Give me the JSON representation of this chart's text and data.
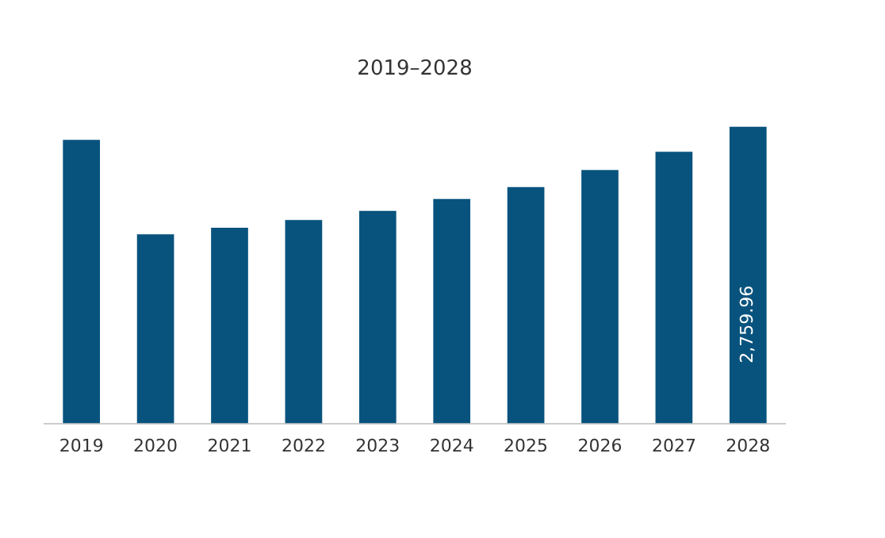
{
  "chart_data": {
    "type": "bar",
    "title": "2019–2028",
    "categories": [
      "2019",
      "2020",
      "2021",
      "2022",
      "2023",
      "2024",
      "2025",
      "2026",
      "2027",
      "2028"
    ],
    "values": [
      2638,
      1759,
      1820,
      1893,
      1978,
      2088,
      2198,
      2357,
      2528,
      2759.96
    ],
    "value_labels": [
      null,
      null,
      null,
      null,
      null,
      null,
      null,
      null,
      null,
      "2,759.96"
    ],
    "color": "#08537e",
    "grid": false,
    "legend": false
  }
}
